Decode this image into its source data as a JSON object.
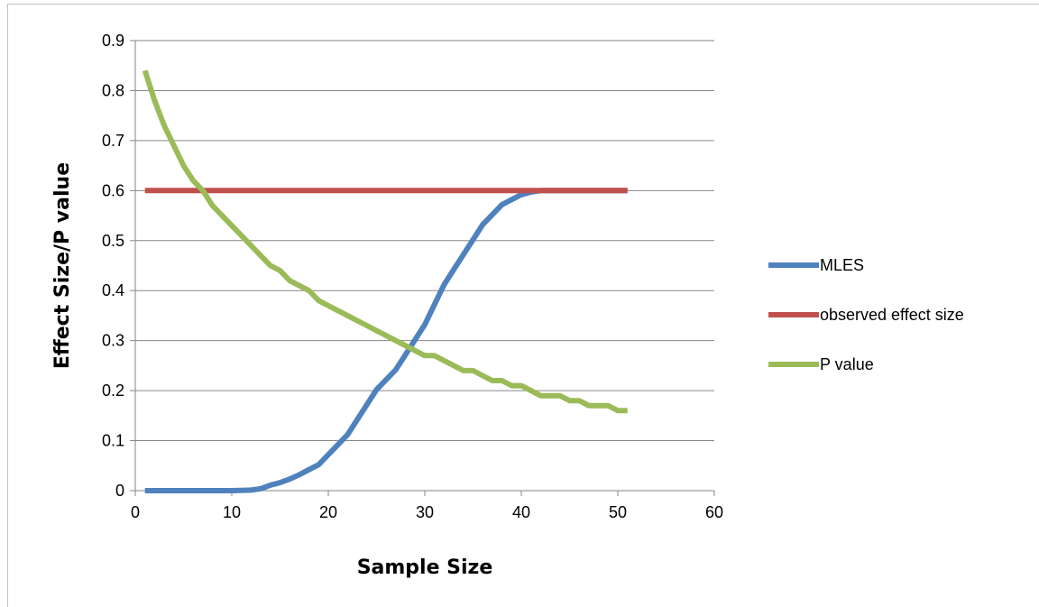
{
  "chart_data": {
    "type": "line",
    "xlabel": "Sample Size",
    "ylabel": "Effect Size/P value",
    "xlim": [
      0,
      60
    ],
    "ylim": [
      0,
      0.9
    ],
    "xticks": [
      0,
      10,
      20,
      30,
      40,
      50,
      60
    ],
    "yticks": [
      0,
      0.1,
      0.2,
      0.3,
      0.4,
      0.5,
      0.6,
      0.7,
      0.8,
      0.9
    ],
    "grid": "horizontal",
    "legend_position": "right",
    "series": [
      {
        "name": "MLES",
        "color": "#4f81bd",
        "x": [
          1,
          5,
          10,
          12,
          13,
          14,
          15,
          16,
          17,
          18,
          19,
          20,
          21,
          22,
          23,
          24,
          25,
          26,
          27,
          28,
          29,
          30,
          31,
          32,
          33,
          34,
          35,
          36,
          37,
          38,
          39,
          40,
          41,
          42,
          45,
          51
        ],
        "y": [
          0,
          0,
          0,
          0.001,
          0.004,
          0.011,
          0.016,
          0.023,
          0.032,
          0.042,
          0.052,
          0.072,
          0.092,
          0.112,
          0.142,
          0.172,
          0.202,
          0.222,
          0.242,
          0.272,
          0.302,
          0.332,
          0.372,
          0.412,
          0.442,
          0.472,
          0.502,
          0.532,
          0.552,
          0.572,
          0.582,
          0.592,
          0.597,
          0.6,
          0.6,
          0.6
        ]
      },
      {
        "name": "observed effect size",
        "color": "#c0504d",
        "x": [
          1,
          51
        ],
        "y": [
          0.6,
          0.6
        ]
      },
      {
        "name": "P value",
        "color": "#9bbb59",
        "x": [
          1,
          2,
          3,
          4,
          5,
          6,
          7,
          8,
          9,
          10,
          11,
          12,
          13,
          14,
          15,
          16,
          17,
          18,
          19,
          20,
          21,
          22,
          23,
          24,
          25,
          26,
          27,
          28,
          29,
          30,
          31,
          32,
          33,
          34,
          35,
          36,
          37,
          38,
          39,
          40,
          41,
          42,
          43,
          44,
          45,
          46,
          47,
          48,
          49,
          50,
          51
        ],
        "y": [
          0.84,
          0.78,
          0.73,
          0.69,
          0.65,
          0.62,
          0.6,
          0.57,
          0.55,
          0.53,
          0.51,
          0.49,
          0.47,
          0.45,
          0.44,
          0.42,
          0.41,
          0.4,
          0.38,
          0.37,
          0.36,
          0.35,
          0.34,
          0.33,
          0.32,
          0.31,
          0.3,
          0.29,
          0.28,
          0.27,
          0.27,
          0.26,
          0.25,
          0.24,
          0.24,
          0.23,
          0.22,
          0.22,
          0.21,
          0.21,
          0.2,
          0.19,
          0.19,
          0.19,
          0.18,
          0.18,
          0.17,
          0.17,
          0.17,
          0.16,
          0.16
        ]
      }
    ]
  }
}
